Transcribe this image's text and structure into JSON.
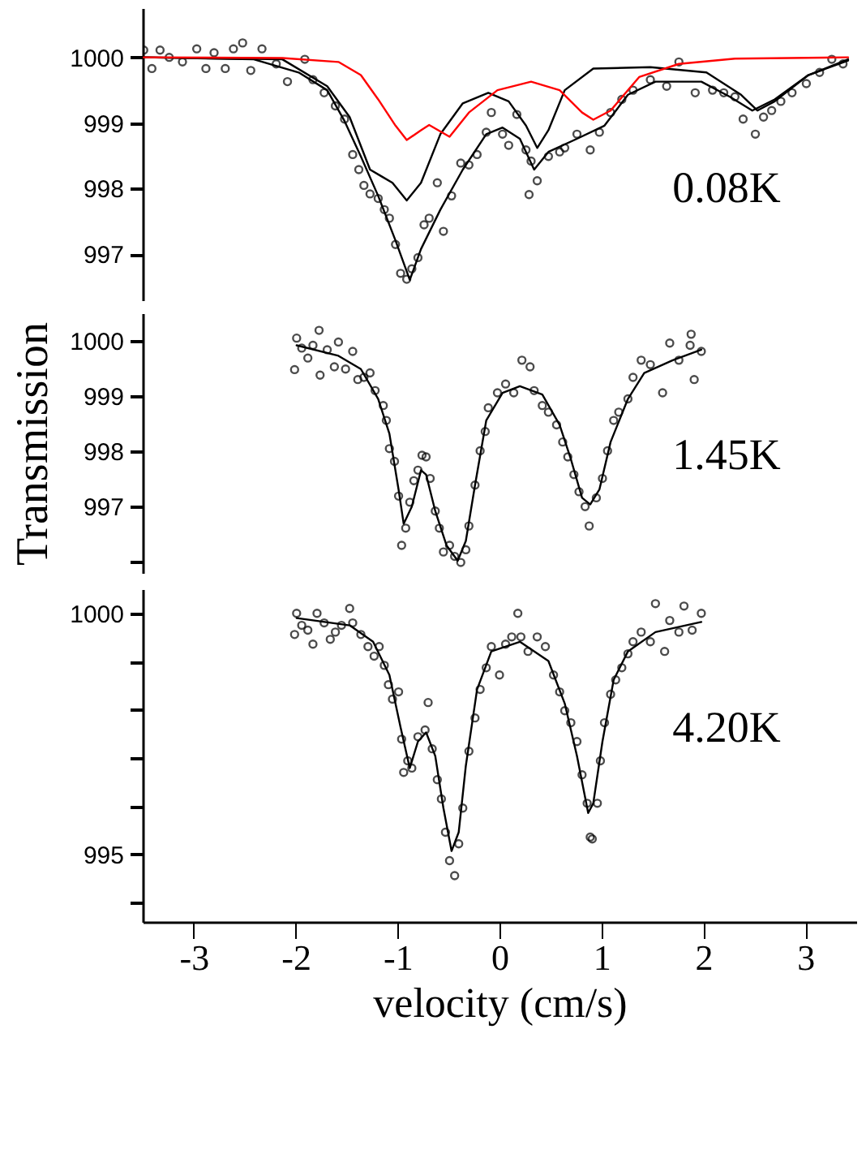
{
  "chart_data": [
    {
      "type": "scatter",
      "xlim": [
        -3.5,
        3.5
      ],
      "ylim": [
        996.3,
        1000.75
      ],
      "yticks": [
        997,
        998,
        999,
        1000
      ],
      "tick_labels": "y",
      "annotations": [
        "0.08K"
      ],
      "series": [
        {
          "type": "scatter",
          "marker": "circle",
          "color": "#000000",
          "x": [
            -3.49,
            -3.41,
            -3.33,
            -3.24,
            -3.11,
            -2.97,
            -2.88,
            -2.8,
            -2.69,
            -2.61,
            -2.52,
            -2.44,
            -2.33,
            -2.19,
            -2.08,
            -1.91,
            -1.83,
            -1.72,
            -1.61,
            -1.52,
            -1.44,
            -1.38,
            -1.33,
            -1.27,
            -1.19,
            -1.13,
            -1.08,
            -1.02,
            -0.97,
            -0.91,
            -0.86,
            -0.8,
            -0.74,
            -0.69,
            -0.61,
            -0.55,
            -0.47,
            -0.38,
            -0.3,
            -0.22,
            -0.13,
            -0.08,
            0.03,
            0.09,
            0.17,
            0.26,
            0.31,
            0.29,
            0.37,
            0.48,
            0.59,
            0.64,
            0.76,
            0.89,
            0.98,
            1.09,
            1.2,
            1.31,
            1.48,
            1.64,
            1.76,
            1.92,
            2.09,
            2.2,
            2.31,
            2.39,
            2.51,
            2.59,
            2.67,
            2.76,
            2.87,
            3.01,
            3.14,
            3.26,
            3.37
          ],
          "values": [
            1000.11,
            999.83,
            1000.11,
            1000.0,
            999.93,
            1000.13,
            999.83,
            1000.07,
            999.83,
            1000.13,
            1000.22,
            999.8,
            1000.13,
            999.9,
            999.63,
            999.97,
            999.66,
            999.46,
            999.26,
            999.06,
            998.52,
            998.29,
            998.05,
            997.92,
            997.85,
            997.68,
            997.55,
            997.15,
            996.71,
            996.62,
            996.78,
            996.95,
            997.45,
            997.55,
            998.09,
            997.35,
            997.89,
            998.39,
            998.36,
            998.52,
            998.86,
            999.16,
            998.83,
            998.66,
            999.13,
            998.59,
            998.42,
            997.91,
            998.12,
            998.49,
            998.56,
            998.62,
            998.83,
            998.59,
            998.86,
            999.16,
            999.36,
            999.5,
            999.66,
            999.56,
            999.93,
            999.46,
            999.5,
            999.46,
            999.4,
            999.06,
            998.83,
            999.09,
            999.19,
            999.33,
            999.46,
            999.6,
            999.77,
            999.97,
            999.9
          ]
        },
        {
          "type": "line",
          "color": "#000000",
          "x": [
            -3.49,
            -2.41,
            -1.97,
            -1.69,
            -1.52,
            -1.36,
            -1.19,
            -1.02,
            -0.88,
            -0.77,
            -0.58,
            -0.36,
            -0.13,
            0.03,
            0.2,
            0.34,
            0.48,
            0.76,
            1.03,
            1.26,
            1.53,
            1.98,
            2.26,
            2.48,
            2.7,
            3.03,
            3.42
          ],
          "values": [
            1000.0,
            999.97,
            999.77,
            999.5,
            999.03,
            998.49,
            997.89,
            997.21,
            996.61,
            997.08,
            997.68,
            998.29,
            998.83,
            998.93,
            998.76,
            998.29,
            998.56,
            998.76,
            998.96,
            999.43,
            999.63,
            999.63,
            999.4,
            999.19,
            999.36,
            999.73,
            999.97
          ]
        },
        {
          "type": "line",
          "color": "#000000",
          "x": [
            -3.49,
            -2.13,
            -1.69,
            -1.47,
            -1.27,
            -1.16,
            -1.05,
            -0.91,
            -0.77,
            -0.58,
            -0.36,
            -0.11,
            0.09,
            0.26,
            0.37,
            0.48,
            0.64,
            0.92,
            1.48,
            2.03,
            2.37,
            2.53,
            2.7,
            3.03,
            3.42
          ],
          "values": [
            1000.0,
            999.97,
            999.56,
            999.09,
            998.29,
            998.19,
            998.09,
            997.82,
            998.09,
            998.83,
            999.3,
            999.46,
            999.33,
            998.96,
            998.62,
            998.89,
            999.5,
            999.83,
            999.85,
            999.77,
            999.43,
            999.19,
            999.33,
            999.73,
            999.95
          ]
        },
        {
          "type": "line",
          "color": "#ff0000",
          "x": [
            -3.49,
            -2.13,
            -1.58,
            -1.36,
            -1.19,
            -1.02,
            -0.91,
            -0.77,
            -0.69,
            -0.49,
            -0.3,
            -0.02,
            0.31,
            0.59,
            0.81,
            0.92,
            1.09,
            1.37,
            1.76,
            2.31,
            3.42
          ],
          "values": [
            1000.0,
            999.99,
            999.93,
            999.73,
            999.36,
            998.96,
            998.74,
            998.89,
            998.97,
            998.79,
            999.16,
            999.5,
            999.63,
            999.5,
            999.16,
            999.05,
            999.19,
            999.7,
            999.9,
            999.98,
            1000.0
          ]
        }
      ]
    },
    {
      "type": "scatter",
      "xlim": [
        -3.5,
        3.5
      ],
      "ylim": [
        995.8,
        1000.5
      ],
      "yticks": [
        {
          "value": 996,
          "label": null
        },
        997,
        998,
        999,
        1000
      ],
      "ylabel": "Transmission",
      "tick_labels": "y",
      "annotations": [
        "1.45K"
      ],
      "series": [
        {
          "type": "scatter",
          "marker": "circle",
          "color": "#000000",
          "x": [
            -2.01,
            -1.99,
            -1.94,
            -1.88,
            -1.83,
            -1.77,
            -1.76,
            -1.69,
            -1.62,
            -1.58,
            -1.51,
            -1.44,
            -1.39,
            -1.33,
            -1.27,
            -1.22,
            -1.14,
            -1.11,
            -1.08,
            -1.03,
            -0.99,
            -0.96,
            -0.92,
            -0.88,
            -0.84,
            -0.8,
            -0.76,
            -0.72,
            -0.68,
            -0.63,
            -0.59,
            -0.55,
            -0.49,
            -0.44,
            -0.38,
            -0.33,
            -0.3,
            -0.24,
            -0.19,
            -0.14,
            -0.11,
            -0.02,
            0.06,
            0.14,
            0.22,
            0.3,
            0.34,
            0.42,
            0.48,
            0.56,
            0.62,
            0.67,
            0.73,
            0.78,
            0.84,
            0.88,
            0.95,
            1.01,
            1.06,
            1.12,
            1.17,
            1.26,
            1.31,
            1.39,
            1.48,
            1.6,
            1.67,
            1.76,
            1.87,
            1.88,
            1.91,
            1.98
          ],
          "values": [
            999.48,
            1000.05,
            999.87,
            999.69,
            999.92,
            1000.19,
            999.38,
            999.84,
            999.53,
            999.98,
            999.49,
            999.81,
            999.3,
            999.34,
            999.42,
            999.1,
            998.83,
            998.56,
            998.05,
            997.82,
            997.19,
            996.3,
            996.61,
            997.08,
            997.47,
            997.66,
            997.93,
            997.9,
            997.51,
            996.92,
            996.61,
            996.18,
            996.3,
            996.1,
            995.99,
            996.22,
            996.65,
            997.39,
            998.01,
            998.36,
            998.79,
            999.06,
            999.22,
            999.06,
            999.65,
            999.53,
            999.1,
            998.83,
            998.71,
            998.48,
            998.17,
            997.9,
            997.58,
            997.27,
            997.0,
            996.65,
            997.16,
            997.51,
            998.01,
            998.56,
            998.71,
            998.95,
            999.34,
            999.65,
            999.57,
            999.06,
            999.96,
            999.65,
            999.92,
            1000.12,
            999.3,
            999.81
          ]
        },
        {
          "type": "line",
          "color": "#000000",
          "x": [
            -1.99,
            -1.58,
            -1.36,
            -1.19,
            -1.08,
            -0.99,
            -0.94,
            -0.86,
            -0.77,
            -0.72,
            -0.63,
            -0.52,
            -0.41,
            -0.33,
            -0.24,
            -0.13,
            0.03,
            0.2,
            0.42,
            0.59,
            0.7,
            0.81,
            0.89,
            0.98,
            1.09,
            1.26,
            1.42,
            1.7,
            1.98
          ],
          "values": [
            999.92,
            999.73,
            999.49,
            998.95,
            998.32,
            997.31,
            996.69,
            997.0,
            997.66,
            997.58,
            996.92,
            996.3,
            996.02,
            996.38,
            997.39,
            998.56,
            999.06,
            999.18,
            999.03,
            998.48,
            997.86,
            997.16,
            997.04,
            997.31,
            998.17,
            998.95,
            999.42,
            999.65,
            999.84
          ]
        }
      ]
    },
    {
      "type": "scatter",
      "xlim": [
        -3.5,
        3.5
      ],
      "ylim": [
        993.6,
        1000.5
      ],
      "xticks": [
        -3,
        -2,
        -1,
        0,
        1,
        2,
        3
      ],
      "yticks": [
        1000,
        {
          "value": 999,
          "label": null
        },
        {
          "value": 998,
          "label": null
        },
        {
          "value": 997,
          "label": null
        },
        {
          "value": 996,
          "label": null
        },
        995,
        {
          "value": 994,
          "label": null
        }
      ],
      "xlabel": "velocity (cm/s)",
      "annotations": [
        "4.20K"
      ],
      "series": [
        {
          "type": "scatter",
          "marker": "circle",
          "color": "#000000",
          "x": [
            -2.01,
            -1.99,
            -1.94,
            -1.88,
            -1.83,
            -1.79,
            -1.72,
            -1.66,
            -1.61,
            -1.55,
            -1.47,
            -1.44,
            -1.36,
            -1.29,
            -1.23,
            -1.18,
            -1.13,
            -1.09,
            -1.05,
            -0.99,
            -0.96,
            -0.94,
            -0.9,
            -0.86,
            -0.8,
            -0.73,
            -0.7,
            -0.66,
            -0.61,
            -0.57,
            -0.53,
            -0.49,
            -0.44,
            -0.4,
            -0.36,
            -0.3,
            -0.24,
            -0.19,
            -0.13,
            -0.08,
            0.0,
            0.06,
            0.12,
            0.18,
            0.21,
            0.28,
            0.37,
            0.45,
            0.53,
            0.59,
            0.64,
            0.7,
            0.76,
            0.81,
            0.86,
            0.89,
            0.91,
            0.96,
            0.99,
            1.03,
            1.09,
            1.14,
            1.2,
            1.26,
            1.31,
            1.39,
            1.48,
            1.53,
            1.62,
            1.67,
            1.76,
            1.81,
            1.89,
            1.98
          ],
          "values": [
            999.56,
            1000.0,
            999.75,
            999.65,
            999.36,
            1000.0,
            999.8,
            999.46,
            999.61,
            999.75,
            1000.1,
            999.8,
            999.56,
            999.31,
            999.11,
            999.31,
            998.92,
            998.52,
            998.22,
            998.37,
            997.39,
            996.7,
            996.94,
            996.79,
            997.44,
            997.58,
            998.15,
            997.19,
            996.55,
            996.15,
            995.46,
            994.87,
            994.56,
            995.22,
            995.96,
            997.14,
            997.83,
            998.42,
            998.87,
            999.31,
            998.72,
            999.36,
            999.51,
            1000.0,
            999.51,
            999.21,
            999.51,
            999.31,
            998.72,
            998.37,
            997.98,
            997.73,
            997.34,
            996.65,
            996.06,
            995.36,
            995.32,
            996.06,
            996.94,
            997.73,
            998.32,
            998.62,
            998.87,
            999.16,
            999.41,
            999.61,
            999.41,
            1000.2,
            999.21,
            999.85,
            999.61,
            1000.15,
            999.65,
            1000.0
          ]
        },
        {
          "type": "line",
          "color": "#000000",
          "x": [
            -1.99,
            -1.47,
            -1.24,
            -1.08,
            -0.97,
            -0.88,
            -0.8,
            -0.72,
            -0.63,
            -0.55,
            -0.47,
            -0.4,
            -0.33,
            -0.22,
            -0.08,
            0.2,
            0.48,
            0.64,
            0.76,
            0.87,
            0.92,
            1.01,
            1.12,
            1.26,
            1.53,
            1.98
          ],
          "values": [
            999.9,
            999.75,
            999.41,
            998.72,
            997.63,
            996.79,
            997.34,
            997.53,
            997.04,
            995.96,
            995.07,
            995.46,
            996.84,
            998.42,
            999.21,
            999.41,
            999.01,
            998.13,
            997.04,
            995.86,
            996.06,
            997.34,
            998.62,
            999.21,
            999.61,
            999.82
          ]
        }
      ]
    }
  ]
}
